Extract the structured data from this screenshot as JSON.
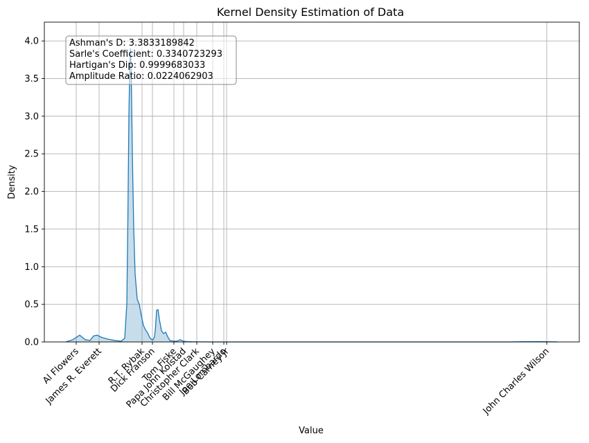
{
  "chart_data": {
    "type": "area",
    "title": "Kernel Density Estimation of Data",
    "xlabel": "Value",
    "ylabel": "Density",
    "ylim": [
      0,
      4.25
    ],
    "y_ticks": [
      "0.0",
      "0.5",
      "1.0",
      "1.5",
      "2.0",
      "2.5",
      "3.0",
      "3.5",
      "4.0"
    ],
    "x_categories": [
      "Al Flowers",
      "James R. Everett",
      "R.T. Rybak",
      "Dick Franson",
      "Tom Fiske",
      "Papa John Kolstad",
      "Christopher Clark",
      "Bill McGaughey",
      "Joe Lombardo",
      "Bob Carney Jr",
      "John Charles Wilson"
    ],
    "grid": true,
    "series": [
      {
        "color": "#1f77b4",
        "x": [
          0,
          10,
          20,
          28,
          35,
          40,
          45,
          52,
          60,
          70,
          80,
          85,
          88,
          89.5,
          91,
          92.5,
          93.5,
          94.5,
          96,
          98,
          100,
          103,
          106,
          109,
          112,
          115,
          118,
          121,
          124,
          126,
          128,
          129.5,
          131,
          133,
          135,
          138,
          141,
          144,
          147,
          150,
          155,
          160,
          163,
          165,
          167,
          170,
          175,
          180,
          183,
          187,
          192,
          200,
          210,
          230,
          260,
          320,
          380,
          460,
          560,
          640,
          660,
          670,
          680,
          690,
          695,
          710
        ],
        "y": [
          0.0,
          0.03,
          0.09,
          0.03,
          0.02,
          0.08,
          0.09,
          0.06,
          0.04,
          0.02,
          0.01,
          0.05,
          0.5,
          1.6,
          3.0,
          3.75,
          3.9,
          3.5,
          2.5,
          1.5,
          0.9,
          0.57,
          0.5,
          0.35,
          0.22,
          0.16,
          0.12,
          0.06,
          0.03,
          0.03,
          0.07,
          0.2,
          0.42,
          0.43,
          0.3,
          0.15,
          0.11,
          0.13,
          0.07,
          0.02,
          0.01,
          0.01,
          0.02,
          0.03,
          0.02,
          0.01,
          0.005,
          0.003,
          0.001,
          0.0015,
          0.001,
          0.0005,
          0.0003,
          0.0001,
          0.0,
          0.0,
          0.0,
          0.0,
          0.0,
          0.0,
          0.003,
          0.004,
          0.005,
          0.004,
          0.003,
          0.0
        ],
        "fill_alpha": 0.25
      }
    ],
    "annotation": [
      "Ashman's D: 3.3833189842",
      "Sarle's Coefficient: 0.3340723293",
      "Hartigan's Dip: 0.9999683033",
      "Amplitude Ratio: 0.0224062903"
    ]
  }
}
